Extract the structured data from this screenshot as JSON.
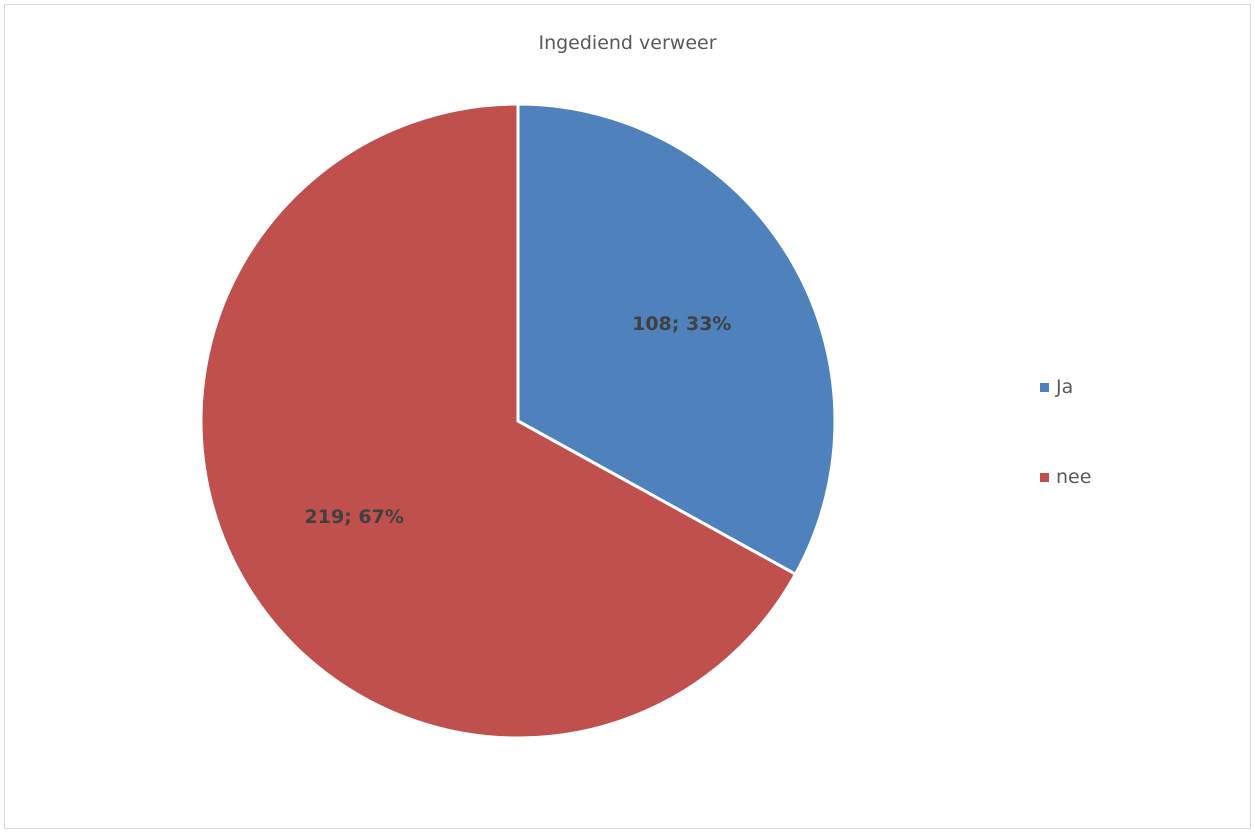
{
  "chart_data": {
    "type": "pie",
    "title": "Ingediend verweer",
    "legend_position": "right",
    "slices": [
      {
        "name": "Ja",
        "value": 108,
        "percent": "33%",
        "label": "108; 33%",
        "color": "#4F81BD"
      },
      {
        "name": "nee",
        "value": 219,
        "percent": "67%",
        "label": "219; 67%",
        "color": "#C0504D"
      }
    ]
  }
}
